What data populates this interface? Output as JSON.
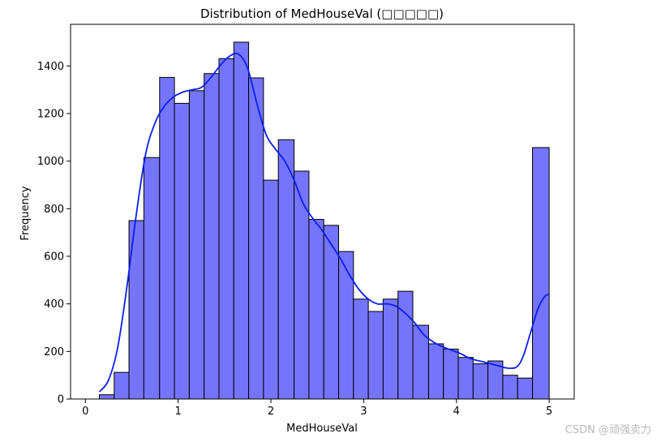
{
  "chart_data": {
    "type": "bar",
    "title": "Distribution of MedHouseVal (□□□□□)",
    "xlabel": "MedHouseVal",
    "ylabel": "Frequency",
    "xlim": [
      -0.16,
      5.27
    ],
    "ylim": [
      0,
      1575
    ],
    "xticks": [
      0,
      1,
      2,
      3,
      4,
      5
    ],
    "yticks": [
      0,
      200,
      400,
      600,
      800,
      1000,
      1200,
      1400
    ],
    "bin_edges": [
      0.15,
      0.31,
      0.47,
      0.63,
      0.8,
      0.96,
      1.12,
      1.28,
      1.44,
      1.6,
      1.76,
      1.92,
      2.08,
      2.25,
      2.41,
      2.57,
      2.73,
      2.89,
      3.05,
      3.21,
      3.37,
      3.53,
      3.7,
      3.86,
      4.02,
      4.18,
      4.34,
      4.5,
      4.66,
      4.82,
      5.0
    ],
    "counts": [
      18,
      112,
      750,
      1015,
      1352,
      1243,
      1296,
      1368,
      1431,
      1500,
      1350,
      920,
      1090,
      958,
      755,
      730,
      620,
      420,
      368,
      420,
      453,
      310,
      232,
      210,
      175,
      148,
      160,
      100,
      88,
      1057
    ],
    "kde": {
      "x": [
        0.15,
        0.25,
        0.35,
        0.45,
        0.55,
        0.65,
        0.75,
        0.85,
        0.95,
        1.05,
        1.15,
        1.25,
        1.35,
        1.45,
        1.55,
        1.65,
        1.75,
        1.85,
        1.95,
        2.05,
        2.15,
        2.25,
        2.35,
        2.45,
        2.55,
        2.65,
        2.75,
        2.85,
        2.95,
        3.05,
        3.15,
        3.25,
        3.35,
        3.45,
        3.55,
        3.65,
        3.75,
        3.85,
        3.95,
        4.05,
        4.15,
        4.25,
        4.35,
        4.45,
        4.55,
        4.65,
        4.72,
        4.8,
        4.88,
        4.95,
        5.0
      ],
      "y": [
        30,
        80,
        220,
        480,
        780,
        1030,
        1160,
        1230,
        1270,
        1290,
        1300,
        1310,
        1350,
        1400,
        1440,
        1450,
        1390,
        1240,
        1110,
        1050,
        1000,
        920,
        820,
        760,
        710,
        650,
        590,
        520,
        460,
        420,
        400,
        400,
        390,
        360,
        320,
        270,
        240,
        220,
        205,
        190,
        170,
        160,
        150,
        140,
        130,
        135,
        180,
        280,
        380,
        430,
        440
      ]
    },
    "bar_color": "#7474fc",
    "bar_edge_color": "#000000",
    "kde_color": "#0a1ef0",
    "grid": false,
    "watermark": "CSDN @顽强卖力"
  }
}
